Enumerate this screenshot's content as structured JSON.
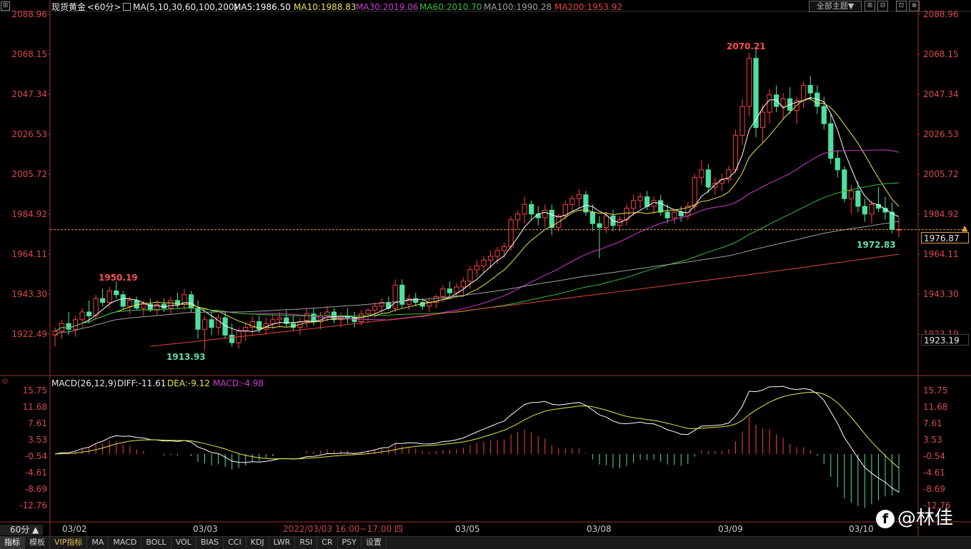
{
  "header": {
    "instrument": "现货黄金",
    "period_tag": "<60分>",
    "ma_spec": "MA(5,10,30,60,100,200)",
    "ma_values": [
      {
        "label": "MA5:1986.50",
        "color": "#ffffff"
      },
      {
        "label": "MA10:1988.83",
        "color": "#e6e64c"
      },
      {
        "label": "MA30:2019.06",
        "color": "#d23ad2"
      },
      {
        "label": "MA60:2010.70",
        "color": "#34c234"
      },
      {
        "label": "MA100:1990.28",
        "color": "#a0a0a0"
      },
      {
        "label": "MA200:1953.92",
        "color": "#e8443a"
      }
    ],
    "theme_button": "全部主题▼",
    "window_buttons": [
      "⊞",
      "⊟",
      "⊡",
      "⊗"
    ]
  },
  "price_axis": {
    "ticks": [
      "2088.96",
      "2068.15",
      "2047.34",
      "2026.53",
      "2005.72",
      "1984.92",
      "1964.11",
      "1943.30",
      "1922.49"
    ],
    "right_ticks": [
      "2088.96",
      "2068.15",
      "2047.34",
      "2026.53",
      "2005.72",
      "1984.92",
      "1964.11",
      "1943.30",
      "1923.19"
    ],
    "current_price": "1976.87",
    "lower_price": "1923.19"
  },
  "annotations": {
    "high1": "1950.19",
    "low1": "1913.93",
    "high2": "2070.21",
    "low2": "1972.83"
  },
  "macd": {
    "title": "MACD(26,12,9)",
    "diff": "DIFF:-11.61",
    "dea": "DEA:-9.12",
    "macd": "MACD:-4.98",
    "ticks": [
      "15.75",
      "11.68",
      "7.61",
      "3.53",
      "-0.54",
      "-4.61",
      "-8.69",
      "-12.76"
    ],
    "right_ticks": [
      "15.75",
      "11.68",
      "7.61",
      "3.53",
      "-0.54",
      "-4.61",
      "-8.69",
      "-12.76"
    ]
  },
  "time_axis": {
    "labels": [
      "03/02",
      "03/03",
      "03/05",
      "03/08",
      "03/09",
      "03/10"
    ],
    "cursor_time": "2022/03/03 16:00~17:00 四"
  },
  "period_selector": "60分 ▲",
  "bottom_tabs": [
    "指标",
    "模板",
    "VIP指标",
    "MA",
    "MACD",
    "BOLL",
    "VOL",
    "BIAS",
    "CCI",
    "KDJ",
    "LWR",
    "RSI",
    "CR",
    "PSY",
    "设置"
  ],
  "watermark": "@林佳",
  "colors": {
    "up": "#ff4040",
    "down": "#4ee0a0",
    "axis_red": "#e04848",
    "grid": "#2a2a2a",
    "current_line": "#e8a040"
  },
  "chart_data": {
    "type": "candlestick",
    "price_range": [
      1910,
      2090
    ],
    "candles_ohlc": [
      [
        1922,
        1926,
        1916,
        1924
      ],
      [
        1924,
        1930,
        1920,
        1928
      ],
      [
        1928,
        1934,
        1922,
        1925
      ],
      [
        1925,
        1932,
        1921,
        1930
      ],
      [
        1930,
        1936,
        1926,
        1934
      ],
      [
        1934,
        1940,
        1928,
        1932
      ],
      [
        1932,
        1943,
        1930,
        1941
      ],
      [
        1941,
        1946,
        1937,
        1939
      ],
      [
        1939,
        1947,
        1936,
        1945
      ],
      [
        1945,
        1950,
        1941,
        1943
      ],
      [
        1943,
        1945,
        1935,
        1937
      ],
      [
        1937,
        1942,
        1933,
        1940
      ],
      [
        1940,
        1942,
        1935,
        1936
      ],
      [
        1936,
        1940,
        1932,
        1938
      ],
      [
        1938,
        1941,
        1934,
        1935
      ],
      [
        1935,
        1940,
        1932,
        1938
      ],
      [
        1938,
        1941,
        1934,
        1936
      ],
      [
        1936,
        1942,
        1933,
        1940
      ],
      [
        1940,
        1944,
        1936,
        1938
      ],
      [
        1938,
        1946,
        1935,
        1943
      ],
      [
        1943,
        1945,
        1934,
        1936
      ],
      [
        1936,
        1940,
        1920,
        1925
      ],
      [
        1925,
        1932,
        1914,
        1930
      ],
      [
        1930,
        1934,
        1922,
        1926
      ],
      [
        1926,
        1933,
        1922,
        1931
      ],
      [
        1931,
        1934,
        1920,
        1922
      ],
      [
        1922,
        1928,
        1916,
        1918
      ],
      [
        1918,
        1926,
        1915,
        1924
      ],
      [
        1924,
        1928,
        1919,
        1926
      ],
      [
        1926,
        1932,
        1922,
        1929
      ],
      [
        1929,
        1932,
        1923,
        1925
      ],
      [
        1925,
        1931,
        1922,
        1928
      ],
      [
        1928,
        1933,
        1925,
        1930
      ],
      [
        1930,
        1934,
        1926,
        1931
      ],
      [
        1931,
        1935,
        1926,
        1928
      ],
      [
        1928,
        1932,
        1924,
        1926
      ],
      [
        1926,
        1931,
        1922,
        1929
      ],
      [
        1929,
        1936,
        1926,
        1933
      ],
      [
        1933,
        1936,
        1927,
        1929
      ],
      [
        1929,
        1934,
        1925,
        1932
      ],
      [
        1932,
        1937,
        1929,
        1934
      ],
      [
        1934,
        1936,
        1928,
        1930
      ],
      [
        1930,
        1934,
        1926,
        1932
      ],
      [
        1932,
        1936,
        1928,
        1931
      ],
      [
        1931,
        1934,
        1926,
        1929
      ],
      [
        1929,
        1935,
        1927,
        1933
      ],
      [
        1933,
        1936,
        1929,
        1935
      ],
      [
        1935,
        1939,
        1931,
        1937
      ],
      [
        1937,
        1941,
        1933,
        1939
      ],
      [
        1939,
        1942,
        1935,
        1936
      ],
      [
        1936,
        1951,
        1934,
        1948
      ],
      [
        1948,
        1951,
        1936,
        1938
      ],
      [
        1938,
        1943,
        1935,
        1941
      ],
      [
        1941,
        1944,
        1937,
        1939
      ],
      [
        1939,
        1941,
        1935,
        1937
      ],
      [
        1937,
        1941,
        1934,
        1939
      ],
      [
        1939,
        1943,
        1936,
        1942
      ],
      [
        1942,
        1948,
        1939,
        1946
      ],
      [
        1946,
        1950,
        1942,
        1944
      ],
      [
        1944,
        1949,
        1941,
        1947
      ],
      [
        1947,
        1952,
        1943,
        1950
      ],
      [
        1950,
        1958,
        1946,
        1956
      ],
      [
        1956,
        1961,
        1952,
        1958
      ],
      [
        1958,
        1963,
        1954,
        1961
      ],
      [
        1961,
        1966,
        1957,
        1963
      ],
      [
        1963,
        1968,
        1959,
        1966
      ],
      [
        1966,
        1970,
        1962,
        1968
      ],
      [
        1968,
        1984,
        1966,
        1982
      ],
      [
        1982,
        1987,
        1977,
        1985
      ],
      [
        1985,
        1994,
        1980,
        1990
      ],
      [
        1990,
        1992,
        1982,
        1985
      ],
      [
        1985,
        1989,
        1979,
        1983
      ],
      [
        1983,
        1990,
        1978,
        1987
      ],
      [
        1987,
        1990,
        1974,
        1978
      ],
      [
        1978,
        1985,
        1976,
        1984
      ],
      [
        1984,
        1992,
        1982,
        1990
      ],
      [
        1990,
        1995,
        1986,
        1993
      ],
      [
        1993,
        1998,
        1988,
        1995
      ],
      [
        1995,
        1997,
        1984,
        1986
      ],
      [
        1986,
        1990,
        1976,
        1980
      ],
      [
        1980,
        1984,
        1962,
        1978
      ],
      [
        1978,
        1986,
        1975,
        1984
      ],
      [
        1984,
        1987,
        1976,
        1979
      ],
      [
        1979,
        1984,
        1976,
        1982
      ],
      [
        1982,
        1990,
        1979,
        1988
      ],
      [
        1988,
        1995,
        1984,
        1992
      ],
      [
        1992,
        1996,
        1988,
        1994
      ],
      [
        1994,
        1997,
        1987,
        1989
      ],
      [
        1989,
        1994,
        1985,
        1992
      ],
      [
        1992,
        1995,
        1984,
        1986
      ],
      [
        1986,
        1990,
        1980,
        1983
      ],
      [
        1983,
        1988,
        1980,
        1986
      ],
      [
        1986,
        1989,
        1981,
        1984
      ],
      [
        1984,
        1991,
        1982,
        1989
      ],
      [
        1989,
        2006,
        1987,
        2004
      ],
      [
        2004,
        2013,
        2000,
        2008
      ],
      [
        2008,
        2011,
        1996,
        1999
      ],
      [
        1999,
        2004,
        1995,
        2001
      ],
      [
        2001,
        2006,
        1997,
        2003
      ],
      [
        2003,
        2010,
        2001,
        2008
      ],
      [
        2008,
        2029,
        2006,
        2026
      ],
      [
        2026,
        2045,
        2021,
        2041
      ],
      [
        2041,
        2069,
        2036,
        2066
      ],
      [
        2066,
        2071,
        2025,
        2030
      ],
      [
        2030,
        2042,
        2022,
        2038
      ],
      [
        2038,
        2050,
        2032,
        2047
      ],
      [
        2047,
        2052,
        2038,
        2041
      ],
      [
        2041,
        2048,
        2034,
        2045
      ],
      [
        2045,
        2051,
        2037,
        2039
      ],
      [
        2039,
        2046,
        2032,
        2044
      ],
      [
        2044,
        2054,
        2040,
        2052
      ],
      [
        2052,
        2057,
        2044,
        2048
      ],
      [
        2048,
        2052,
        2037,
        2041
      ],
      [
        2041,
        2046,
        2029,
        2032
      ],
      [
        2032,
        2037,
        2011,
        2014
      ],
      [
        2014,
        2018,
        2004,
        2008
      ],
      [
        2008,
        2010,
        1991,
        1993
      ],
      [
        1993,
        2000,
        1985,
        1997
      ],
      [
        1997,
        2002,
        1986,
        1989
      ],
      [
        1989,
        1993,
        1981,
        1985
      ],
      [
        1985,
        1992,
        1980,
        1990
      ],
      [
        1990,
        1999,
        1986,
        1988
      ],
      [
        1988,
        1994,
        1982,
        1986
      ],
      [
        1986,
        1991,
        1975,
        1977
      ],
      [
        1977,
        1983,
        1973,
        1977
      ]
    ],
    "macd_range": [
      -14,
      17
    ]
  }
}
